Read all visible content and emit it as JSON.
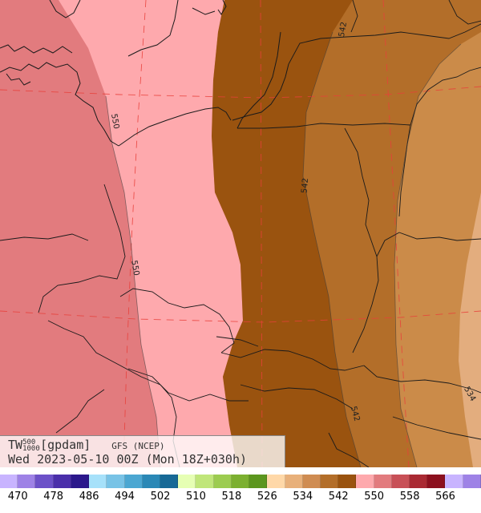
{
  "map": {
    "contour_labels": [
      "542",
      "550",
      "542",
      "550",
      "542",
      "534"
    ],
    "colors": {
      "z550_558": "#e27b7e",
      "z542_550": "#fea9ad",
      "z534_542": "#9a530f",
      "z526_534": "#b36e29",
      "z518_526": "#cb8b49",
      "z510_518": "#e3ad7e"
    }
  },
  "info": {
    "variable": "TW",
    "superscript": "500",
    "subscript": "1000",
    "unit": "[gpdam]",
    "model": "GFS (NCEP)",
    "valid_time": "Wed 2023-05-10 00Z (Mon 18Z+030h)"
  },
  "legend": {
    "colors": [
      "#c8b4ff",
      "#9e82e6",
      "#6c51c8",
      "#4a2faa",
      "#2b188c",
      "#a6e1fa",
      "#78c3e6",
      "#4ba7d2",
      "#2a88b6",
      "#176996",
      "#e6ffb4",
      "#c0e67a",
      "#9ccc50",
      "#7cb030",
      "#5c961e",
      "#ffd8a8",
      "#e8b07a",
      "#cf8c52",
      "#b36e29",
      "#9a530f",
      "#fea9ad",
      "#e27b7e",
      "#c85057",
      "#aa2a33",
      "#8c101e",
      "#c8b4ff",
      "#9e82e6"
    ],
    "labels": [
      "470",
      "478",
      "486",
      "494",
      "502",
      "510",
      "518",
      "526",
      "534",
      "542",
      "550",
      "558",
      "566"
    ]
  }
}
